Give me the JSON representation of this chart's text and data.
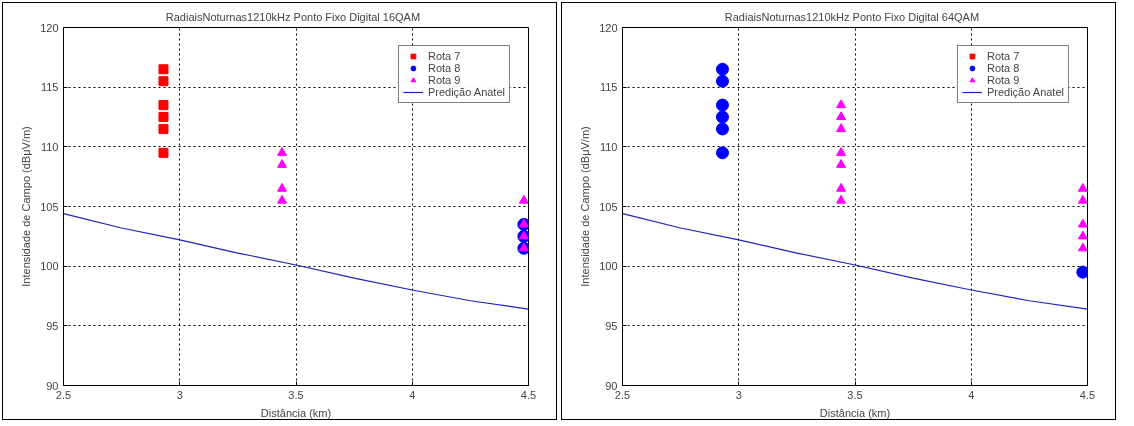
{
  "chart_data": [
    {
      "type": "scatter",
      "title": "RadiaisNoturnas1210kHz   Ponto Fixo Digital 16QAM",
      "xlabel": "Distância (km)",
      "ylabel": "Intensidade de Campo (dBμV/m)",
      "xlim": [
        2.5,
        4.5
      ],
      "ylim": [
        90,
        120
      ],
      "xticks": [
        2.5,
        3,
        3.5,
        4,
        4.5
      ],
      "yticks": [
        90,
        95,
        100,
        105,
        110,
        115,
        120
      ],
      "grid": true,
      "legend": "top right",
      "series": [
        {
          "name": "Rota 7",
          "color": "#ff0000",
          "marker": "square",
          "x": [
            2.93,
            2.93,
            2.93,
            2.93,
            2.93,
            2.93
          ],
          "values": [
            116.5,
            115.5,
            113.5,
            112.5,
            111.5,
            109.5
          ]
        },
        {
          "name": "Rota 8",
          "color": "#0000ff",
          "marker": "circle",
          "x": [
            4.48,
            4.48,
            4.48
          ],
          "values": [
            103.5,
            102.5,
            101.5
          ]
        },
        {
          "name": "Rota 9",
          "color": "#ff00ff",
          "marker": "triangle",
          "x": [
            3.44,
            3.44,
            3.44,
            3.44,
            4.48,
            4.48,
            4.48,
            4.48
          ],
          "values": [
            109.5,
            108.5,
            106.5,
            105.5,
            105.5,
            103.5,
            102.5,
            101.5
          ]
        },
        {
          "name": "Predição Anatel",
          "type": "line",
          "color": "#2020c0",
          "line_style": "solid",
          "x": [
            2.5,
            2.75,
            3,
            3.25,
            3.5,
            3.75,
            4,
            4.25,
            4.5
          ],
          "values": [
            104.4,
            103.2,
            102.2,
            101.1,
            100.1,
            99.0,
            98.0,
            97.1,
            96.4
          ]
        }
      ]
    },
    {
      "type": "scatter",
      "title": "RadiaisNoturnas1210kHz   Ponto Fixo Digital 64QAM",
      "xlabel": "Distância (km)",
      "ylabel": "Intensidade de Campo (dBμV/m)",
      "xlim": [
        2.5,
        4.5
      ],
      "ylim": [
        90,
        120
      ],
      "xticks": [
        2.5,
        3,
        3.5,
        4,
        4.5
      ],
      "yticks": [
        90,
        95,
        100,
        105,
        110,
        115,
        120
      ],
      "grid": true,
      "legend": "top right",
      "series": [
        {
          "name": "Rota 7",
          "color": "#ff0000",
          "marker": "square"
        },
        {
          "name": "Rota 8",
          "color": "#0000ff",
          "marker": "circle",
          "x": [
            2.93,
            2.93,
            2.93,
            2.93,
            2.93,
            2.93,
            4.48
          ],
          "values": [
            116.5,
            115.5,
            113.5,
            112.5,
            111.5,
            109.5,
            99.5
          ]
        },
        {
          "name": "Rota 9",
          "color": "#ff00ff",
          "marker": "triangle",
          "x": [
            3.44,
            3.44,
            3.44,
            3.44,
            3.44,
            3.44,
            3.44,
            4.48,
            4.48,
            4.48,
            4.48,
            4.48
          ],
          "values": [
            113.5,
            112.5,
            111.5,
            109.5,
            108.5,
            106.5,
            105.5,
            106.5,
            105.5,
            103.5,
            102.5,
            101.5
          ]
        },
        {
          "name": "Predição Anatel",
          "type": "line",
          "color": "#2020c0",
          "line_style": "solid",
          "x": [
            2.5,
            2.75,
            3,
            3.25,
            3.5,
            3.75,
            4,
            4.25,
            4.5
          ],
          "values": [
            104.4,
            103.2,
            102.2,
            101.1,
            100.1,
            99.0,
            98.0,
            97.1,
            96.4
          ]
        }
      ]
    }
  ]
}
